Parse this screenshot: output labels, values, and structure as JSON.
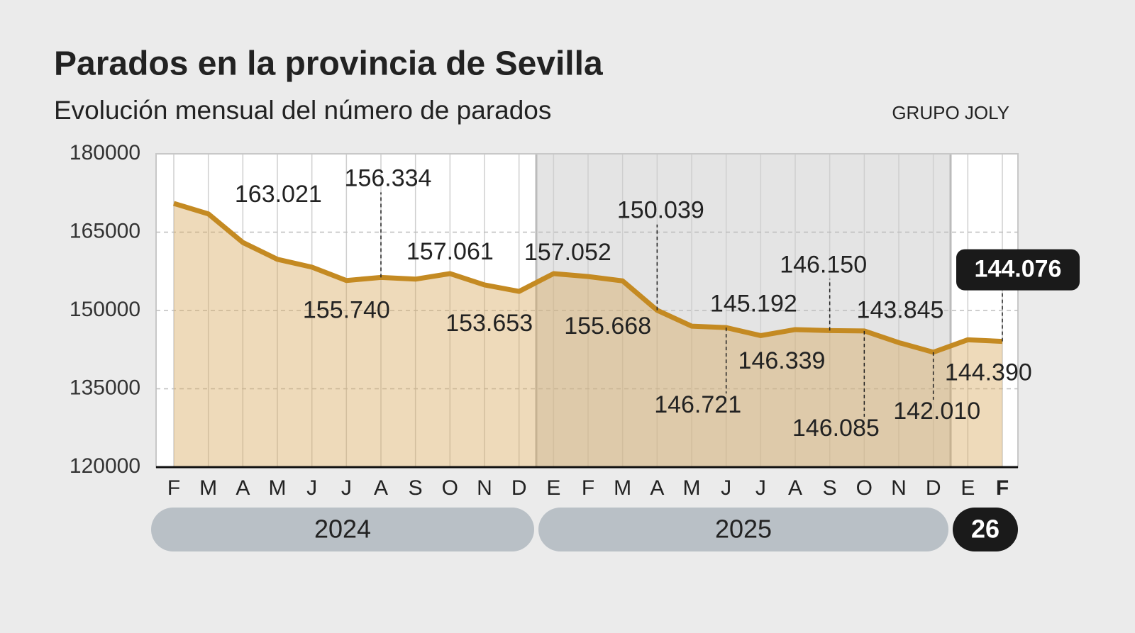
{
  "chart_data": {
    "type": "line",
    "title": "Parados en la provincia de Sevilla",
    "subtitle": "Evolución mensual del número de parados",
    "source": "GRUPO JOLY",
    "categories": [
      "F",
      "M",
      "A",
      "M",
      "J",
      "J",
      "A",
      "S",
      "O",
      "N",
      "D",
      "E",
      "F",
      "M",
      "A",
      "M",
      "J",
      "J",
      "A",
      "S",
      "O",
      "N",
      "D",
      "E",
      "F"
    ],
    "years": [
      "2024",
      "2025",
      "26"
    ],
    "values": [
      170500,
      168500,
      163021,
      159800,
      158300,
      155740,
      156334,
      156000,
      157061,
      154900,
      153653,
      157052,
      156500,
      155668,
      150039,
      147000,
      146721,
      145192,
      146339,
      146150,
      146085,
      143845,
      142010,
      144390,
      144076
    ],
    "value_labels": [
      null,
      null,
      "163.021",
      null,
      null,
      "155.740",
      "156.334",
      null,
      "157.061",
      null,
      "153.653",
      "157.052",
      null,
      "155.668",
      "150.039",
      null,
      "146.721",
      "145.192",
      "146.339",
      "146.150",
      "146.085",
      "143.845",
      "142.010",
      "144.390",
      "144.076"
    ],
    "color": "#c48a22",
    "ylim": [
      120000,
      180000
    ],
    "yticks": [
      120000,
      135000,
      150000,
      165000,
      180000
    ],
    "grid": true
  }
}
